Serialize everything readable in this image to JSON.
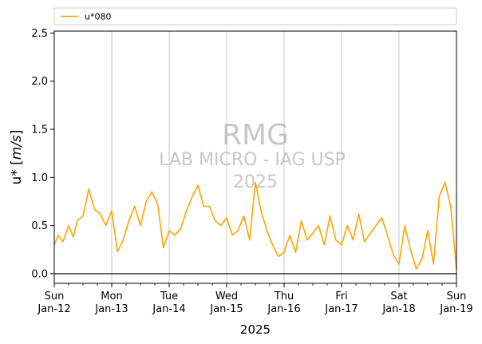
{
  "chart_data": {
    "type": "line",
    "xlabel": "2025",
    "ylabel_text": "u* [",
    "ylabel_math": "m/s",
    "ylabel_close": "]",
    "ylim": [
      -0.1,
      2.52
    ],
    "yticks": [
      "0.0",
      "0.5",
      "1.0",
      "1.5",
      "2.0",
      "2.5"
    ],
    "ytick_values": [
      0.0,
      0.5,
      1.0,
      1.5,
      2.0,
      2.5
    ],
    "xlim_days": [
      0,
      7
    ],
    "xticks": [
      {
        "day": "Sun",
        "date": "Jan-12"
      },
      {
        "day": "Mon",
        "date": "Jan-13"
      },
      {
        "day": "Tue",
        "date": "Jan-14"
      },
      {
        "day": "Wed",
        "date": "Jan-15"
      },
      {
        "day": "Thu",
        "date": "Jan-16"
      },
      {
        "day": "Fri",
        "date": "Jan-17"
      },
      {
        "day": "Sat",
        "date": "Jan-18"
      },
      {
        "day": "Sun",
        "date": "Jan-19"
      }
    ],
    "grid": "vertical-major",
    "zero_line": 0,
    "legend": {
      "placement": "top",
      "entries": [
        "u*080"
      ]
    },
    "series": [
      {
        "name": "u*080",
        "color": "#ffa500",
        "x": [
          0.0,
          0.07,
          0.15,
          0.25,
          0.33,
          0.4,
          0.5,
          0.6,
          0.7,
          0.8,
          0.9,
          1.0,
          1.1,
          1.2,
          1.3,
          1.4,
          1.5,
          1.6,
          1.7,
          1.8,
          1.9,
          2.0,
          2.1,
          2.2,
          2.3,
          2.4,
          2.5,
          2.6,
          2.7,
          2.8,
          2.9,
          3.0,
          3.1,
          3.2,
          3.3,
          3.4,
          3.5,
          3.6,
          3.7,
          3.8,
          3.9,
          4.0,
          4.1,
          4.2,
          4.3,
          4.4,
          4.5,
          4.6,
          4.7,
          4.8,
          4.9,
          5.0,
          5.1,
          5.2,
          5.3,
          5.4,
          5.5,
          5.6,
          5.7,
          5.8,
          5.9,
          6.0,
          6.1,
          6.2,
          6.3,
          6.4,
          6.5,
          6.6,
          6.7,
          6.8,
          6.9,
          7.0
        ],
        "y": [
          0.3,
          0.4,
          0.33,
          0.5,
          0.38,
          0.55,
          0.6,
          0.88,
          0.67,
          0.62,
          0.5,
          0.65,
          0.23,
          0.35,
          0.55,
          0.7,
          0.5,
          0.75,
          0.85,
          0.72,
          0.27,
          0.45,
          0.4,
          0.47,
          0.65,
          0.8,
          0.92,
          0.7,
          0.7,
          0.55,
          0.5,
          0.58,
          0.4,
          0.45,
          0.6,
          0.35,
          0.95,
          0.65,
          0.45,
          0.3,
          0.18,
          0.22,
          0.4,
          0.22,
          0.55,
          0.35,
          0.42,
          0.5,
          0.3,
          0.6,
          0.35,
          0.3,
          0.5,
          0.35,
          0.62,
          0.33,
          0.42,
          0.5,
          0.58,
          0.4,
          0.2,
          0.1,
          0.5,
          0.25,
          0.05,
          0.15,
          0.45,
          0.1,
          0.8,
          0.95,
          0.7,
          0.05
        ]
      }
    ]
  },
  "watermark": {
    "line1": "RMG",
    "line2": "LAB MICRO - IAG USP",
    "line3": "2025"
  }
}
